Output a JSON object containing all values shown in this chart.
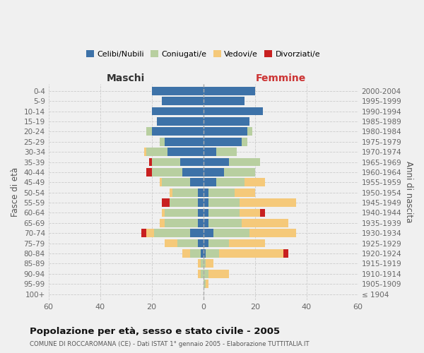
{
  "age_groups": [
    "100+",
    "95-99",
    "90-94",
    "85-89",
    "80-84",
    "75-79",
    "70-74",
    "65-69",
    "60-64",
    "55-59",
    "50-54",
    "45-49",
    "40-44",
    "35-39",
    "30-34",
    "25-29",
    "20-24",
    "15-19",
    "10-14",
    "5-9",
    "0-4"
  ],
  "birth_years": [
    "≤ 1904",
    "1905-1909",
    "1910-1914",
    "1915-1919",
    "1920-1924",
    "1925-1929",
    "1930-1934",
    "1935-1939",
    "1940-1944",
    "1945-1949",
    "1950-1954",
    "1955-1959",
    "1960-1964",
    "1965-1969",
    "1970-1974",
    "1975-1979",
    "1980-1984",
    "1985-1989",
    "1990-1994",
    "1995-1999",
    "2000-2004"
  ],
  "maschi_celibi": [
    0,
    0,
    0,
    0,
    1,
    2,
    5,
    2,
    2,
    2,
    2,
    5,
    8,
    9,
    14,
    15,
    20,
    18,
    20,
    16,
    20
  ],
  "maschi_coniugati": [
    0,
    0,
    1,
    1,
    4,
    8,
    14,
    13,
    13,
    11,
    10,
    11,
    12,
    11,
    8,
    2,
    2,
    0,
    0,
    0,
    0
  ],
  "maschi_vedovi": [
    0,
    0,
    1,
    1,
    3,
    5,
    3,
    2,
    1,
    0,
    1,
    1,
    0,
    0,
    1,
    0,
    0,
    0,
    0,
    0,
    0
  ],
  "maschi_divorziati": [
    0,
    0,
    0,
    0,
    0,
    0,
    2,
    0,
    0,
    3,
    0,
    0,
    2,
    1,
    0,
    0,
    0,
    0,
    0,
    0,
    0
  ],
  "femmine_nubili": [
    0,
    0,
    0,
    0,
    1,
    2,
    4,
    2,
    2,
    2,
    2,
    5,
    8,
    10,
    5,
    15,
    17,
    18,
    23,
    16,
    20
  ],
  "femmine_coniugate": [
    0,
    1,
    2,
    1,
    5,
    8,
    14,
    13,
    12,
    12,
    10,
    11,
    12,
    12,
    8,
    2,
    2,
    0,
    0,
    0,
    0
  ],
  "femmine_vedove": [
    0,
    1,
    8,
    3,
    25,
    14,
    18,
    18,
    8,
    22,
    8,
    8,
    0,
    0,
    0,
    0,
    0,
    0,
    0,
    0,
    0
  ],
  "femmine_divorziate": [
    0,
    0,
    0,
    0,
    2,
    0,
    0,
    0,
    2,
    0,
    0,
    0,
    0,
    0,
    0,
    0,
    0,
    0,
    0,
    0,
    0
  ],
  "colors": {
    "celibi_nubili": "#3d72a8",
    "coniugati": "#b8cfa0",
    "vedovi": "#f5c97a",
    "divorziati": "#c82020"
  },
  "xlim": 60,
  "title": "Popolazione per età, sesso e stato civile - 2005",
  "subtitle": "COMUNE DI ROCCAROMANA (CE) - Dati ISTAT 1° gennaio 2005 - Elaborazione TUTTITALIA.IT",
  "ylabel_left": "Fasce di età",
  "ylabel_right": "Anni di nascita",
  "xlabel_left": "Maschi",
  "xlabel_right": "Femmine",
  "bg_color": "#f0f0f0",
  "grid_color": "#cccccc"
}
